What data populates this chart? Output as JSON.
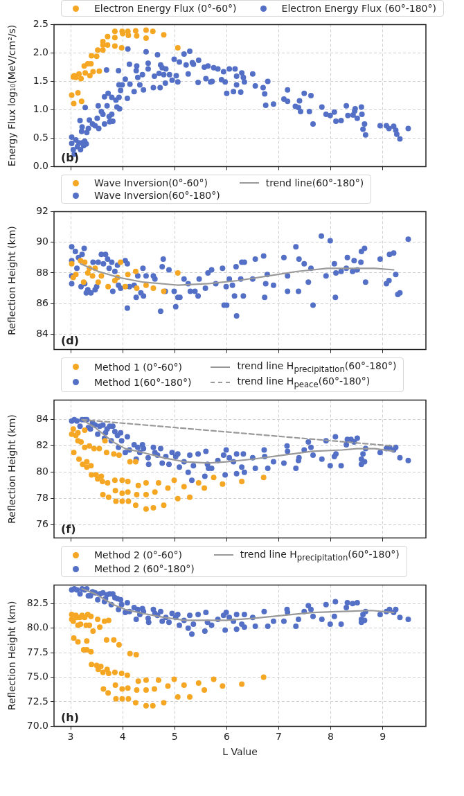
{
  "chart_data": [
    {
      "type": "scatter",
      "ylabel": "Energy Flux log₁₀(MeV/cm²/s)",
      "xlim": [
        2.68,
        9.83
      ],
      "ylim": [
        0,
        2.5
      ],
      "xticks": [
        3,
        4,
        5,
        6,
        7,
        8,
        9
      ],
      "yticks": [
        {
          "value": 0,
          "label": "0.0"
        },
        {
          "value": 0.5,
          "label": "0.5"
        },
        {
          "value": 1,
          "label": "1.0"
        },
        {
          "value": 1.5,
          "label": "1.5"
        },
        {
          "value": 2,
          "label": "2.0"
        },
        {
          "value": 2.5,
          "label": "2.5"
        }
      ],
      "tick_labels": "y",
      "grid": true,
      "legend": "top",
      "marker": "circle",
      "annotations": [
        "(b)"
      ],
      "series": [
        {
          "name": "Electron Energy Flux (0°-60°)",
          "color": "#f5a623",
          "x": [
            3.02,
            3.06,
            3.05,
            3.07,
            3.1,
            3.14,
            3.16,
            3.2,
            3.21,
            3.26,
            3.28,
            3.33,
            3.39,
            3.37,
            3.4,
            3.43,
            3.5,
            3.52,
            3.55,
            3.62,
            3.62,
            3.62,
            3.71,
            3.71,
            3.85,
            3.85,
            3.85,
            3.98,
            3.99,
            4.0,
            4.1,
            4.11,
            4.25,
            4.27,
            4.45,
            4.45,
            4.58,
            4.79,
            5.06
          ],
          "values": [
            1.26,
            1.11,
            1.58,
            1.6,
            1.57,
            1.3,
            1.63,
            1.55,
            1.15,
            1.77,
            1.65,
            1.81,
            1.81,
            1.6,
            1.95,
            1.67,
            1.94,
            2.05,
            1.68,
            2.2,
            2.14,
            2.05,
            2.14,
            2.29,
            2.27,
            2.38,
            2.12,
            2.09,
            2.38,
            2.34,
            2.38,
            2.31,
            2.39,
            2.3,
            2.4,
            2.26,
            2.38,
            2.32,
            2.09
          ]
        },
        {
          "name": "Electron Energy Flux (60°-180°)",
          "color": "#5470c6",
          "x": [
            3.02,
            3.02,
            3.05,
            3.07,
            3.1,
            3.13,
            3.16,
            3.19,
            3.22,
            3.25,
            3.27,
            3.3,
            3.28,
            3.18,
            3.21,
            3.22,
            3.31,
            3.34,
            3.36,
            3.42,
            3.47,
            3.51,
            3.53,
            3.54,
            3.59,
            3.62,
            3.65,
            3.65,
            3.69,
            3.7,
            3.72,
            3.74,
            3.75,
            3.79,
            3.79,
            3.81,
            3.87,
            3.89,
            3.92,
            3.93,
            3.93,
            3.94,
            3.96,
            3.99,
            4.05,
            4.09,
            4.1,
            4.14,
            4.13,
            4.22,
            4.26,
            4.27,
            4.29,
            4.33,
            4.38,
            4.4,
            4.45,
            4.49,
            4.49,
            4.59,
            4.61,
            4.67,
            4.7,
            4.72,
            4.73,
            4.76,
            4.79,
            4.82,
            4.83,
            4.9,
            4.95,
            4.99,
            5.03,
            5.06,
            5.09,
            5.18,
            5.22,
            5.26,
            5.29,
            5.34,
            5.36,
            5.45,
            5.46,
            5.57,
            5.6,
            5.64,
            5.69,
            5.72,
            5.75,
            5.83,
            5.9,
            5.94,
            5.97,
            6.0,
            6.05,
            6.13,
            6.16,
            6.19,
            6.19,
            6.27,
            6.29,
            6.32,
            6.34,
            6.5,
            6.55,
            6.7,
            6.73,
            6.75,
            6.79,
            6.9,
            7.1,
            7.17,
            7.17,
            7.32,
            7.38,
            7.4,
            7.42,
            7.49,
            7.59,
            7.62,
            7.66,
            7.83,
            7.91,
            7.99,
            8.07,
            8.1,
            8.2,
            8.3,
            8.33,
            8.43,
            8.46,
            8.47,
            8.51,
            8.59,
            8.6,
            8.62,
            8.65,
            8.67,
            8.95,
            9.07,
            9.12,
            9.21,
            9.25,
            9.27,
            9.33,
            9.49
          ],
          "values": [
            0.52,
            0.41,
            0.3,
            0.22,
            0.47,
            0.35,
            0.42,
            0.3,
            0.42,
            0.37,
            0.45,
            0.4,
            1.04,
            0.81,
            0.62,
            0.7,
            0.6,
            0.67,
            0.82,
            0.75,
            0.72,
            0.85,
            1.07,
            0.67,
            0.97,
            0.92,
            1.23,
            0.75,
            1.7,
            1.07,
            1.29,
            0.88,
            0.79,
            1.22,
            0.92,
            0.8,
            1.17,
            1.05,
            1.69,
            1.44,
            1.22,
            1.02,
            1.34,
            1.44,
            1.54,
            1.2,
            2.07,
            1.45,
            1.8,
            1.32,
            1.69,
            1.77,
            1.57,
            1.44,
            1.62,
            1.35,
            2.02,
            1.72,
            1.82,
            1.39,
            1.59,
            1.97,
            1.64,
            1.39,
            1.79,
            1.74,
            1.62,
            1.47,
            1.72,
            1.62,
            1.52,
            1.89,
            1.6,
            1.49,
            1.84,
            1.98,
            1.79,
            1.63,
            2.03,
            1.83,
            1.8,
            1.48,
            1.87,
            1.75,
            1.55,
            1.77,
            1.49,
            1.5,
            1.74,
            1.72,
            1.53,
            1.67,
            1.49,
            1.29,
            1.72,
            1.32,
            1.72,
            1.59,
            1.44,
            1.31,
            1.65,
            1.57,
            1.49,
            1.63,
            1.42,
            1.39,
            1.28,
            1.08,
            1.5,
            1.1,
            1.19,
            1.35,
            1.15,
            1.06,
            1.04,
            1.16,
            0.97,
            1.29,
            0.97,
            1.25,
            0.75,
            1.05,
            0.92,
            0.9,
            0.96,
            0.8,
            0.81,
            1.07,
            0.9,
            0.91,
            0.98,
            1.02,
            0.85,
            1.05,
            0.92,
            0.66,
            0.75,
            0.56,
            0.72,
            0.72,
            0.67,
            0.71,
            0.64,
            0.57,
            0.49,
            0.67
          ]
        }
      ]
    },
    {
      "type": "scatter",
      "ylabel": "Reflection Height (km)",
      "xlim": [
        2.68,
        9.83
      ],
      "ylim": [
        83,
        92
      ],
      "xticks": [
        3,
        4,
        5,
        6,
        7,
        8,
        9
      ],
      "yticks": [
        84,
        86,
        88,
        90,
        92
      ],
      "tick_labels": "y",
      "grid": true,
      "legend": "top",
      "marker": "circle",
      "annotations": [
        "(d)"
      ],
      "series": [
        {
          "name": "Wave Inversion(0°-60°)",
          "color": "#f5a623",
          "x": [
            3.02,
            3.05,
            3.1,
            3.19,
            3.25,
            3.27,
            3.33,
            3.36,
            3.42,
            3.47,
            3.53,
            3.59,
            3.72,
            3.85,
            3.9,
            3.96,
            4.05,
            4.1,
            4.25,
            4.27,
            4.45,
            4.59,
            4.79,
            5.06
          ],
          "values": [
            88.6,
            87.7,
            87.9,
            88.8,
            87.4,
            88.7,
            88.0,
            88.3,
            87.8,
            88.3,
            87.4,
            87.8,
            87.1,
            87.5,
            87.7,
            88.7,
            87.1,
            87.9,
            88.1,
            87.0,
            87.2,
            87.0,
            86.8,
            88.0
          ]
        },
        {
          "name": "Wave Inversion(60°-180°)",
          "color": "#5470c6",
          "x": [
            3.02,
            3.02,
            3.02,
            3.02,
            3.09,
            3.12,
            3.15,
            3.2,
            3.22,
            3.26,
            3.27,
            3.3,
            3.33,
            3.39,
            3.43,
            3.47,
            3.5,
            3.53,
            3.59,
            3.63,
            3.67,
            3.71,
            3.74,
            3.79,
            3.81,
            3.85,
            3.9,
            3.92,
            3.96,
            4.05,
            4.09,
            4.09,
            4.13,
            4.22,
            4.26,
            4.29,
            4.35,
            4.39,
            4.4,
            4.45,
            4.59,
            4.62,
            4.73,
            4.76,
            4.78,
            4.82,
            4.89,
            4.99,
            5.02,
            5.06,
            5.1,
            5.18,
            5.26,
            5.3,
            5.39,
            5.45,
            5.47,
            5.59,
            5.64,
            5.71,
            5.79,
            5.92,
            5.95,
            5.99,
            6.0,
            6.05,
            6.11,
            6.15,
            6.18,
            6.19,
            6.27,
            6.29,
            6.32,
            6.34,
            6.5,
            6.55,
            6.71,
            6.73,
            6.75,
            6.78,
            6.9,
            7.1,
            7.17,
            7.17,
            7.33,
            7.38,
            7.39,
            7.49,
            7.57,
            7.62,
            7.66,
            7.82,
            7.91,
            7.99,
            8.07,
            8.09,
            8.1,
            8.2,
            8.32,
            8.3,
            8.42,
            8.45,
            8.51,
            8.58,
            8.59,
            8.65,
            8.67,
            8.95,
            9.07,
            9.12,
            9.13,
            9.21,
            9.25,
            9.29,
            9.33,
            9.49
          ],
          "values": [
            89.7,
            88.8,
            87.8,
            87.3,
            89.4,
            88.3,
            89.0,
            87.1,
            89.2,
            89.6,
            87.3,
            86.7,
            86.9,
            86.7,
            88.7,
            86.9,
            87.1,
            88.7,
            89.2,
            88.6,
            89.2,
            88.9,
            88.3,
            88.7,
            86.8,
            88.1,
            88.5,
            87.2,
            87.0,
            88.8,
            88.6,
            85.7,
            87.1,
            87.2,
            86.4,
            87.8,
            86.7,
            88.3,
            86.5,
            87.8,
            87.8,
            87.6,
            85.5,
            88.4,
            88.9,
            86.8,
            88.2,
            86.8,
            85.8,
            86.4,
            86.4,
            87.6,
            87.3,
            86.8,
            86.8,
            86.5,
            87.6,
            87.0,
            88.0,
            88.2,
            87.3,
            88.3,
            85.9,
            87.1,
            85.9,
            87.6,
            87.2,
            86.5,
            88.4,
            85.2,
            87.6,
            88.7,
            86.5,
            88.7,
            87.6,
            88.9,
            89.1,
            86.4,
            87.3,
            87.9,
            87.2,
            89.0,
            86.8,
            87.8,
            89.7,
            86.8,
            88.9,
            88.6,
            87.4,
            88.3,
            85.9,
            90.4,
            87.8,
            90.1,
            88.6,
            86.4,
            88.0,
            88.1,
            89.0,
            88.3,
            88.1,
            88.8,
            88.2,
            88.7,
            89.4,
            89.6,
            87.4,
            88.9,
            87.3,
            87.5,
            89.2,
            89.3,
            87.9,
            86.6,
            86.7,
            90.2
          ]
        },
        {
          "name": "trend line(60°-180°)",
          "type": "line",
          "marker": "none",
          "color": "#999999",
          "x": [
            3.19,
            3.53,
            3.93,
            4.39,
            5.07,
            5.65,
            6.22,
            6.79,
            7.36,
            7.93,
            8.51,
            8.85,
            9.21
          ],
          "values": [
            88.6,
            88.1,
            87.7,
            87.4,
            87.2,
            87.3,
            87.5,
            87.8,
            88.1,
            88.3,
            88.3,
            88.3,
            88.2
          ]
        }
      ]
    },
    {
      "type": "scatter",
      "ylabel": "Reflection Height (km)",
      "xlim": [
        2.68,
        9.83
      ],
      "ylim": [
        75,
        85.5
      ],
      "xticks": [
        3,
        4,
        5,
        6,
        7,
        8,
        9
      ],
      "yticks": [
        76,
        78,
        80,
        82,
        84
      ],
      "tick_labels": "y",
      "grid": true,
      "legend": "top",
      "marker": "circle",
      "annotations": [
        "(f)"
      ],
      "series": [
        {
          "name": "Method 1 (0°-60°)",
          "color": "#f5a623",
          "x": [
            3.02,
            3.05,
            3.06,
            3.1,
            3.14,
            3.14,
            3.16,
            3.2,
            3.23,
            3.27,
            3.27,
            3.31,
            3.31,
            3.36,
            3.39,
            3.4,
            3.45,
            3.49,
            3.52,
            3.55,
            3.59,
            3.61,
            3.62,
            3.66,
            3.69,
            3.71,
            3.73,
            3.83,
            3.85,
            3.86,
            3.87,
            3.93,
            3.99,
            3.99,
            3.99,
            4.1,
            4.1,
            4.11,
            4.14,
            4.25,
            4.25,
            4.27,
            4.3,
            4.45,
            4.45,
            4.45,
            4.59,
            4.62,
            4.69,
            4.79,
            4.87,
            4.99,
            5.06,
            5.18,
            5.29,
            5.46,
            5.57,
            5.75,
            5.92,
            6.29,
            6.71
          ],
          "values": [
            82.9,
            83.3,
            81.5,
            82.8,
            83.0,
            82.4,
            81.0,
            82.3,
            80.6,
            83.2,
            81.9,
            80.8,
            80.4,
            82.0,
            80.5,
            79.8,
            81.8,
            79.8,
            79.5,
            81.8,
            79.7,
            79.3,
            78.3,
            82.4,
            81.5,
            79.2,
            78.1,
            81.4,
            79.4,
            78.6,
            77.8,
            81.3,
            79.4,
            78.4,
            77.8,
            79.3,
            78.5,
            77.8,
            80.8,
            80.8,
            77.5,
            78.3,
            79.0,
            79.2,
            78.3,
            77.2,
            77.3,
            78.5,
            79.2,
            77.5,
            78.8,
            79.4,
            78.0,
            78.9,
            78.1,
            79.2,
            78.8,
            79.6,
            79.1,
            79.3,
            79.6
          ]
        },
        {
          "name": "Method 1(60°-180°)",
          "color": "#5470c6",
          "x": [
            3.02,
            3.07,
            3.12,
            3.18,
            3.22,
            3.27,
            3.31,
            3.34,
            3.38,
            3.42,
            3.47,
            3.52,
            3.56,
            3.62,
            3.65,
            3.67,
            3.7,
            3.75,
            3.78,
            3.81,
            3.85,
            3.9,
            3.92,
            3.96,
            3.98,
            4.05,
            4.09,
            4.13,
            4.22,
            4.26,
            4.29,
            4.33,
            4.38,
            4.4,
            4.49,
            4.5,
            4.59,
            4.62,
            4.67,
            4.73,
            4.76,
            4.83,
            4.89,
            4.95,
            5.02,
            5.06,
            5.09,
            5.18,
            5.26,
            5.29,
            5.33,
            5.36,
            5.45,
            5.58,
            5.6,
            5.63,
            5.65,
            5.71,
            5.83,
            5.94,
            5.97,
            5.99,
            6.05,
            6.13,
            6.19,
            6.19,
            6.29,
            6.32,
            6.34,
            6.5,
            6.55,
            6.72,
            6.73,
            6.79,
            6.9,
            7.1,
            7.16,
            7.17,
            7.33,
            7.38,
            7.39,
            7.49,
            7.57,
            7.62,
            7.66,
            7.83,
            7.91,
            7.99,
            8.07,
            8.09,
            8.1,
            8.2,
            8.3,
            8.32,
            8.39,
            8.45,
            8.51,
            8.59,
            8.59,
            8.62,
            8.65,
            8.67,
            8.95,
            9.07,
            9.13,
            9.21,
            9.25,
            9.33,
            9.49
          ],
          "values": [
            83.9,
            84.0,
            83.9,
            83.5,
            84.0,
            84.0,
            84.0,
            83.4,
            83.3,
            83.8,
            83.6,
            82.9,
            83.5,
            83.6,
            82.6,
            83.0,
            83.3,
            83.5,
            82.4,
            83.5,
            83.1,
            82.8,
            81.9,
            83.0,
            82.4,
            81.5,
            82.7,
            81.7,
            82.1,
            81.0,
            81.9,
            81.5,
            82.1,
            81.8,
            81.1,
            80.6,
            81.9,
            81.5,
            81.3,
            81.8,
            80.7,
            81.2,
            80.6,
            81.5,
            81.2,
            81.4,
            80.4,
            80.8,
            80.0,
            81.3,
            79.4,
            80.5,
            81.4,
            79.7,
            81.6,
            80.6,
            80.3,
            80.3,
            80.9,
            81.3,
            79.8,
            81.7,
            81.1,
            80.8,
            81.4,
            79.9,
            80.4,
            81.4,
            80.0,
            81.1,
            80.3,
            81.7,
            81.2,
            80.3,
            80.8,
            80.7,
            82.0,
            81.6,
            80.3,
            80.9,
            81.1,
            81.7,
            82.3,
            81.9,
            81.3,
            81.0,
            82.4,
            80.5,
            81.2,
            82.7,
            81.4,
            80.5,
            82.1,
            82.5,
            82.5,
            82.3,
            82.6,
            81.0,
            80.6,
            81.4,
            80.8,
            81.8,
            81.5,
            81.8,
            81.9,
            81.7,
            81.9,
            81.1,
            80.9
          ]
        },
        {
          "name": "trend line H$_{precipitation}$(60°-180°)",
          "type": "line",
          "marker": "none",
          "color": "#999999",
          "x": [
            3.22,
            3.47,
            3.82,
            4.05,
            4.39,
            4.79,
            5.19,
            5.65,
            5.99,
            6.5,
            7.07,
            7.65,
            8.22,
            8.5,
            8.85,
            9.21
          ],
          "values": [
            84.0,
            83.4,
            82.3,
            81.8,
            81.5,
            81.1,
            80.8,
            80.7,
            80.8,
            81.0,
            81.3,
            81.6,
            81.7,
            81.8,
            81.8,
            81.6
          ]
        },
        {
          "name": "trend line H$_{peace}$(60°-180°)",
          "type": "line",
          "marker": "none",
          "line_style": "dashed",
          "color": "#999999",
          "x": [
            3.22,
            9.21
          ],
          "values": [
            84.0,
            82.0
          ]
        }
      ]
    },
    {
      "type": "scatter",
      "xlabel": "L Value",
      "ylabel": "Reflection Height (km)",
      "xlim": [
        2.68,
        9.83
      ],
      "ylim": [
        70,
        84.4
      ],
      "xticks": [
        3,
        4,
        5,
        6,
        7,
        8,
        9
      ],
      "yticks": [
        {
          "value": 70,
          "label": "70.0"
        },
        {
          "value": 72.5,
          "label": "72.5"
        },
        {
          "value": 75,
          "label": "75.0"
        },
        {
          "value": 77.5,
          "label": "77.5"
        },
        {
          "value": 80,
          "label": "80.0"
        },
        {
          "value": 82.5,
          "label": "82.5"
        }
      ],
      "grid": true,
      "legend": "top",
      "marker": "circle",
      "annotations": [
        "(h)"
      ],
      "series": [
        {
          "name": "Method 2 (0°-60°)",
          "color": "#f5a623",
          "x": [
            3.02,
            3.02,
            3.05,
            3.06,
            3.1,
            3.12,
            3.14,
            3.14,
            3.18,
            3.19,
            3.22,
            3.25,
            3.27,
            3.3,
            3.31,
            3.33,
            3.31,
            3.36,
            3.39,
            3.39,
            3.43,
            3.4,
            3.5,
            3.52,
            3.53,
            3.56,
            3.58,
            3.62,
            3.63,
            3.65,
            3.69,
            3.7,
            3.72,
            3.73,
            3.73,
            3.83,
            3.85,
            3.86,
            3.87,
            3.93,
            3.98,
            3.99,
            3.99,
            4.09,
            4.1,
            4.11,
            4.14,
            4.25,
            4.26,
            4.27,
            4.3,
            4.45,
            4.45,
            4.45,
            4.58,
            4.61,
            4.69,
            4.79,
            4.87,
            4.99,
            5.06,
            5.18,
            5.29,
            5.46,
            5.57,
            5.75,
            5.92,
            6.29,
            6.71
          ],
          "values": [
            81.4,
            80.9,
            80.7,
            79.0,
            81.3,
            81.1,
            80.3,
            78.6,
            81.1,
            80.4,
            81.3,
            77.8,
            81.1,
            80.3,
            77.8,
            81.4,
            78.7,
            80.3,
            81.2,
            77.6,
            79.7,
            76.3,
            76.2,
            80.9,
            75.8,
            80.1,
            76.1,
            75.5,
            73.8,
            80.7,
            78.8,
            75.8,
            73.4,
            80.8,
            75.4,
            78.8,
            75.5,
            74.2,
            72.8,
            78.3,
            75.4,
            73.8,
            72.8,
            75.2,
            73.9,
            72.8,
            77.4,
            72.4,
            77.3,
            73.7,
            74.6,
            74.7,
            72.1,
            73.7,
            72.1,
            73.8,
            74.7,
            72.4,
            74.1,
            74.8,
            73.0,
            74.2,
            73.0,
            74.4,
            73.7,
            74.8,
            74.1,
            74.3,
            75.0
          ]
        },
        {
          "name": "Method 2 (60°-180°)",
          "color": "#5470c6",
          "x": [
            3.02,
            3.07,
            3.12,
            3.18,
            3.22,
            3.27,
            3.31,
            3.34,
            3.38,
            3.42,
            3.47,
            3.52,
            3.56,
            3.62,
            3.65,
            3.67,
            3.7,
            3.75,
            3.78,
            3.81,
            3.85,
            3.9,
            3.92,
            3.96,
            3.98,
            4.05,
            4.09,
            4.13,
            4.22,
            4.26,
            4.29,
            4.33,
            4.38,
            4.4,
            4.49,
            4.5,
            4.59,
            4.62,
            4.67,
            4.73,
            4.76,
            4.83,
            4.89,
            4.95,
            5.02,
            5.06,
            5.09,
            5.18,
            5.26,
            5.29,
            5.33,
            5.36,
            5.45,
            5.58,
            5.6,
            5.63,
            5.71,
            5.83,
            5.94,
            5.97,
            5.99,
            6.05,
            6.13,
            6.19,
            6.19,
            6.29,
            6.34,
            6.34,
            6.5,
            6.55,
            6.72,
            6.79,
            6.9,
            7.1,
            7.16,
            7.17,
            7.33,
            7.38,
            7.49,
            7.57,
            7.62,
            7.66,
            7.83,
            7.91,
            7.99,
            8.07,
            8.09,
            8.2,
            8.3,
            8.32,
            8.42,
            8.51,
            8.59,
            8.59,
            8.62,
            8.65,
            8.67,
            8.95,
            9.07,
            9.13,
            9.21,
            9.25,
            9.33,
            9.49
          ],
          "values": [
            83.9,
            84.0,
            83.9,
            83.5,
            84.0,
            83.9,
            84.0,
            83.3,
            83.3,
            83.7,
            83.6,
            82.9,
            83.5,
            83.6,
            82.7,
            83.0,
            83.4,
            83.5,
            82.4,
            83.5,
            83.1,
            83.0,
            81.9,
            82.9,
            82.4,
            81.6,
            82.6,
            81.7,
            82.1,
            80.9,
            81.9,
            81.4,
            82.0,
            81.7,
            81.0,
            80.6,
            81.9,
            81.5,
            81.3,
            81.7,
            80.7,
            81.1,
            80.6,
            81.5,
            81.1,
            81.4,
            80.3,
            80.8,
            80.0,
            81.3,
            79.4,
            80.4,
            81.4,
            79.7,
            81.6,
            80.6,
            80.3,
            80.9,
            81.3,
            79.8,
            81.6,
            81.1,
            80.7,
            81.4,
            79.9,
            80.4,
            80.1,
            81.4,
            81.1,
            80.2,
            81.7,
            80.2,
            80.7,
            80.7,
            81.9,
            81.6,
            80.2,
            80.9,
            81.7,
            82.3,
            81.9,
            81.2,
            80.9,
            82.4,
            80.4,
            81.2,
            82.7,
            80.4,
            82.1,
            82.6,
            82.5,
            82.6,
            80.9,
            80.6,
            81.4,
            80.8,
            81.7,
            81.4,
            81.7,
            81.9,
            81.6,
            81.9,
            81.1,
            80.9
          ]
        },
        {
          "name": "trend line H$_{precipitation}$(60°-180°)",
          "type": "line",
          "marker": "none",
          "color": "#999999",
          "x": [
            3.22,
            3.47,
            3.82,
            4.05,
            4.39,
            4.79,
            5.19,
            5.65,
            5.99,
            6.5,
            7.07,
            7.65,
            8.22,
            8.79,
            9.21
          ],
          "values": [
            84.0,
            83.5,
            82.4,
            81.9,
            81.5,
            81.1,
            80.8,
            80.8,
            80.8,
            81.0,
            81.3,
            81.6,
            81.7,
            81.8,
            81.6
          ]
        }
      ]
    }
  ]
}
